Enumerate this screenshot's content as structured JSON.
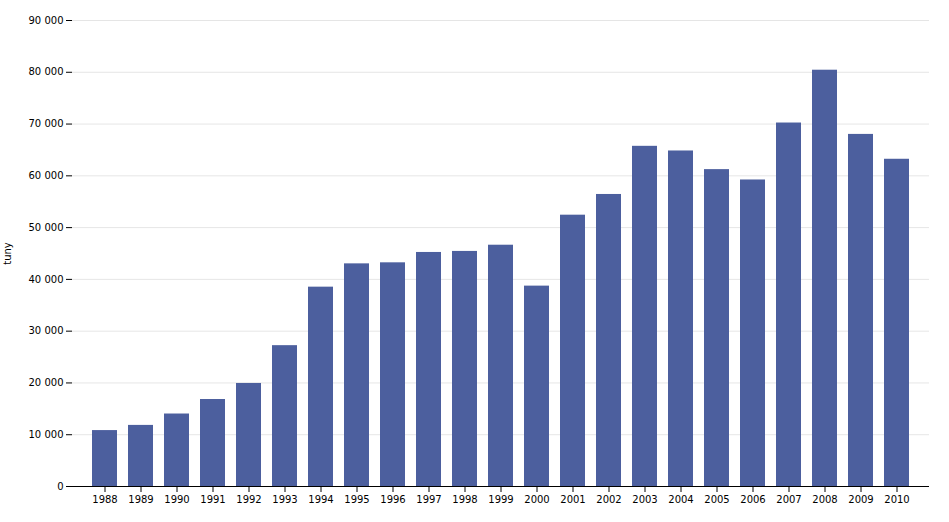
{
  "chart_data": {
    "type": "bar",
    "categories": [
      "1988",
      "1989",
      "1990",
      "1991",
      "1992",
      "1993",
      "1994",
      "1995",
      "1996",
      "1997",
      "1998",
      "1999",
      "2000",
      "2001",
      "2002",
      "2003",
      "2004",
      "2005",
      "2006",
      "2007",
      "2008",
      "2009",
      "2010"
    ],
    "values": [
      10800,
      11800,
      14000,
      16800,
      19900,
      27200,
      38500,
      43000,
      43200,
      45200,
      45400,
      46600,
      38700,
      52400,
      56400,
      65700,
      64800,
      61200,
      59200,
      70200,
      80400,
      68000,
      63200
    ],
    "color": "#4C5F9E",
    "ylabel": "tuny",
    "ylim": [
      0,
      90000
    ],
    "yticks": [
      0,
      {
        "value": 10000,
        "label": "10 000"
      },
      {
        "value": 20000,
        "label": "20 000"
      },
      {
        "value": 30000,
        "label": "30 000"
      },
      {
        "value": 40000,
        "label": "40 000"
      },
      {
        "value": 50000,
        "label": "50 000"
      },
      {
        "value": 60000,
        "label": "60 000"
      },
      {
        "value": 70000,
        "label": "70 000"
      },
      {
        "value": 80000,
        "label": "80 000"
      },
      {
        "value": 90000,
        "label": "90 000"
      }
    ],
    "grid": true
  }
}
